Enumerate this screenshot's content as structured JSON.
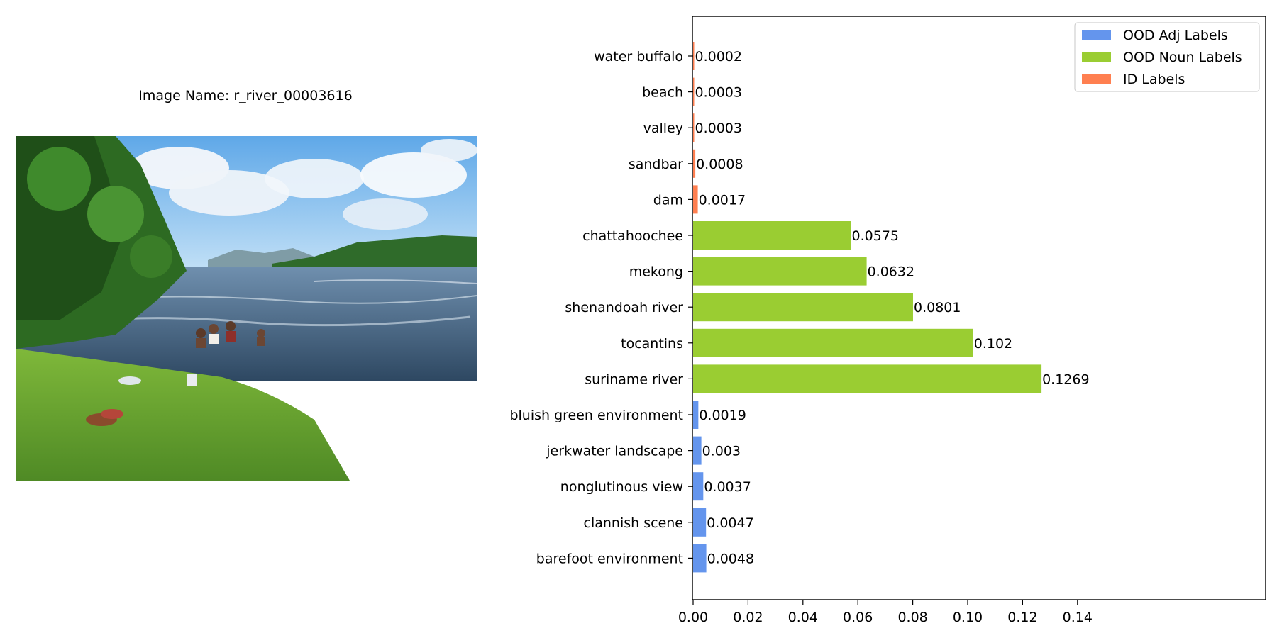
{
  "image_panel": {
    "title": "Image Name: r_river_00003616"
  },
  "chart_data": {
    "type": "bar",
    "orientation": "horizontal",
    "title": "",
    "xlabel": "",
    "ylabel": "",
    "xlim": [
      0,
      0.145
    ],
    "x_ticks": [
      0.0,
      0.02,
      0.04,
      0.06,
      0.08,
      0.1,
      0.12,
      0.14
    ],
    "x_tick_labels": [
      "0.00",
      "0.02",
      "0.04",
      "0.06",
      "0.08",
      "0.10",
      "0.12",
      "0.14"
    ],
    "grid": false,
    "legend_position": "top-right",
    "legend": [
      {
        "name": "OOD Adj Labels",
        "color": "#6495ED"
      },
      {
        "name": "OOD Noun Labels",
        "color": "#9ACD32"
      },
      {
        "name": "ID Labels",
        "color": "#FF7F50"
      }
    ],
    "bars": [
      {
        "label": "water buffalo",
        "value": 0.0002,
        "value_label": "0.0002",
        "group": "ID Labels"
      },
      {
        "label": "beach",
        "value": 0.0003,
        "value_label": "0.0003",
        "group": "ID Labels"
      },
      {
        "label": "valley",
        "value": 0.0003,
        "value_label": "0.0003",
        "group": "ID Labels"
      },
      {
        "label": "sandbar",
        "value": 0.0008,
        "value_label": "0.0008",
        "group": "ID Labels"
      },
      {
        "label": "dam",
        "value": 0.0017,
        "value_label": "0.0017",
        "group": "ID Labels"
      },
      {
        "label": "chattahoochee",
        "value": 0.0575,
        "value_label": "0.0575",
        "group": "OOD Noun Labels"
      },
      {
        "label": "mekong",
        "value": 0.0632,
        "value_label": "0.0632",
        "group": "OOD Noun Labels"
      },
      {
        "label": "shenandoah river",
        "value": 0.0801,
        "value_label": "0.0801",
        "group": "OOD Noun Labels"
      },
      {
        "label": "tocantins",
        "value": 0.102,
        "value_label": "0.102",
        "group": "OOD Noun Labels"
      },
      {
        "label": "suriname river",
        "value": 0.1269,
        "value_label": "0.1269",
        "group": "OOD Noun Labels"
      },
      {
        "label": "bluish green environment",
        "value": 0.0019,
        "value_label": "0.0019",
        "group": "OOD Adj Labels"
      },
      {
        "label": "jerkwater landscape",
        "value": 0.003,
        "value_label": "0.003",
        "group": "OOD Adj Labels"
      },
      {
        "label": "nonglutinous view",
        "value": 0.0037,
        "value_label": "0.0037",
        "group": "OOD Adj Labels"
      },
      {
        "label": "clannish scene",
        "value": 0.0047,
        "value_label": "0.0047",
        "group": "OOD Adj Labels"
      },
      {
        "label": "barefoot environment",
        "value": 0.0048,
        "value_label": "0.0048",
        "group": "OOD Adj Labels"
      }
    ]
  }
}
